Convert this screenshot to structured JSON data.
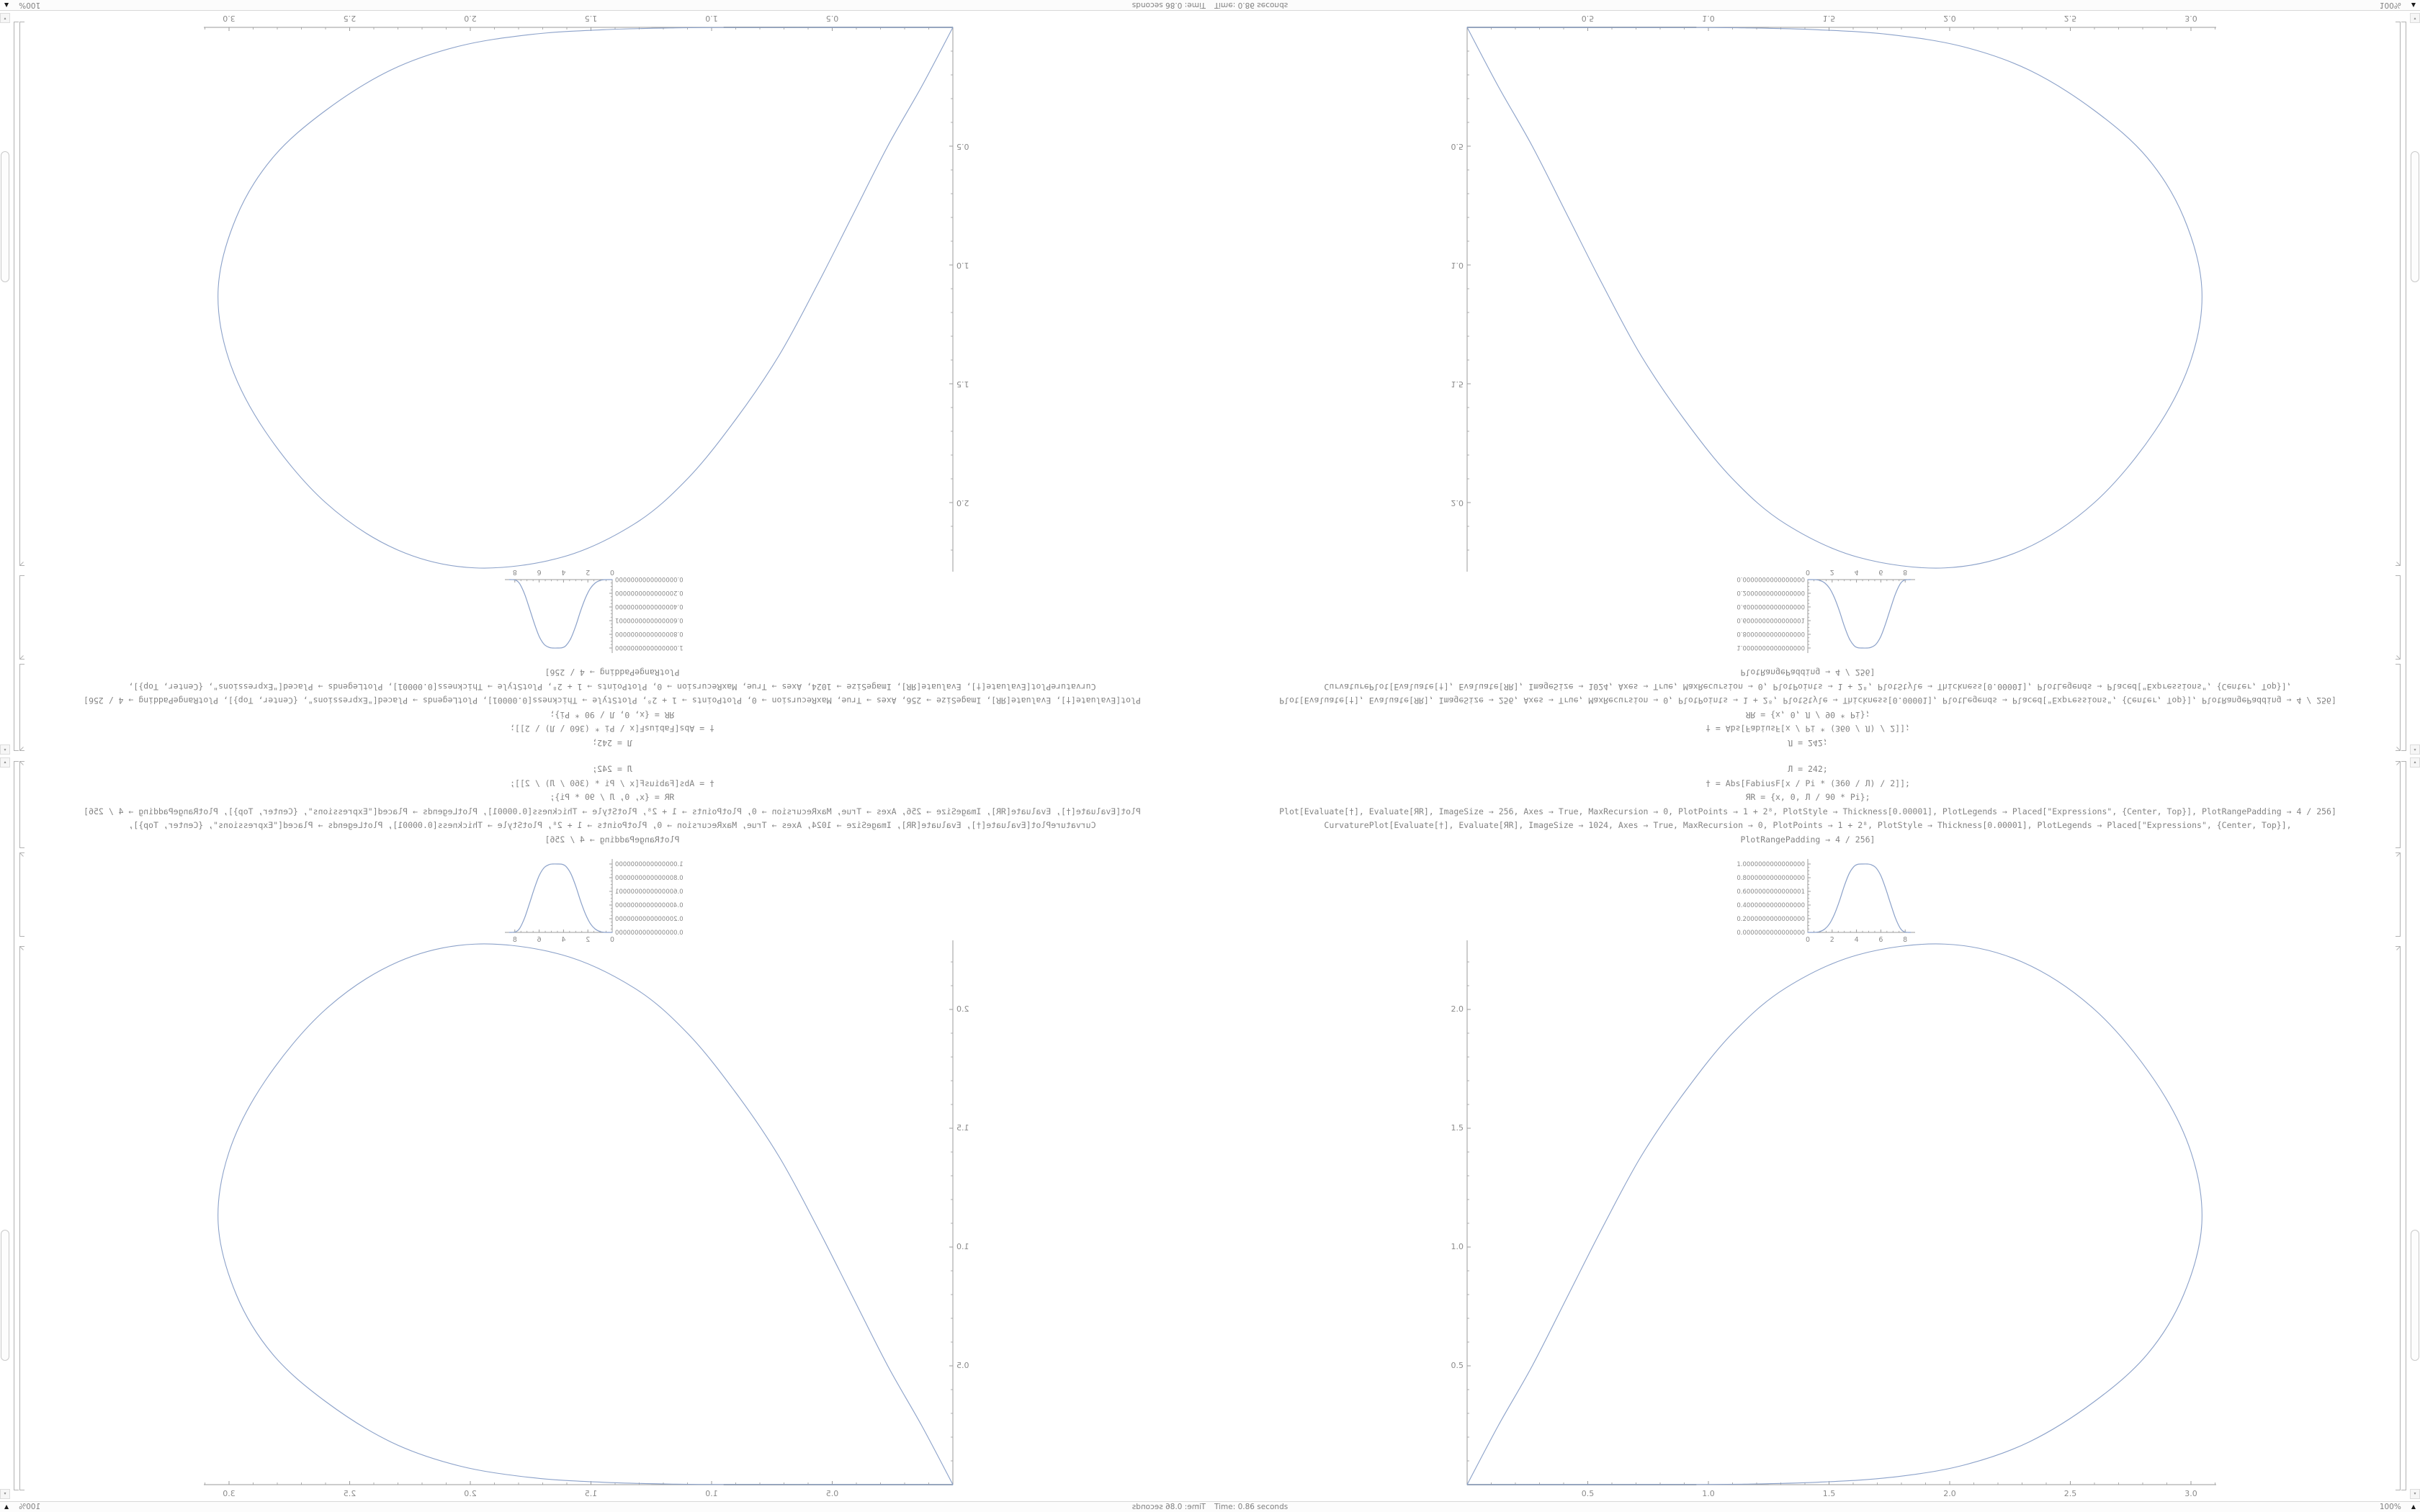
{
  "notebook": {
    "code_cell": {
      "lines": [
        "Л = 242;",
        "† = Abs[FabiusF[x / Pi * (360 / Л) / 2]];",
        "ЯR = {x, 0, Л / 90 * Pi};",
        "Plot[Evaluate[†], Evaluate[ЯR], ImageSize → 256, Axes → True, MaxRecursion → 0, PlotPoints → 1 + 2⁸, PlotStyle → Thickness[0.00001], PlotLegends → Placed[\"Expressions\", {Center, Top}], PlotRangePadding → 4 / 256]",
        "CurvaturePlot[Evaluate[†], Evaluate[ЯR], ImageSize → 1024, Axes → True, MaxRecursion → 0, PlotPoints → 1 + 2⁸, PlotStyle → Thickness[0.00001], PlotLegends → Placed[\"Expressions\", {Center, Top}],",
        "PlotRangePadding → 4 / 256]"
      ]
    },
    "status_bar": {
      "time_label": "Time: 0.86 seconds",
      "zoom_label": "100%",
      "zoom_icon": "▲"
    },
    "scrollbar": {
      "up_icon": "▴",
      "down_icon": "▾"
    }
  },
  "colors": {
    "curve": "#8ba1c9",
    "axis": "#9b9b9b",
    "tick_label": "#8a8a8a",
    "code_text": "#838383",
    "bracket": "#b2b2b2",
    "status_text": "#7f7f7f",
    "zoom_icon_color": "#1a1a1a",
    "axis_overlap_dark": "#8e949b",
    "axis_overlap_light": "#c3c7cb"
  },
  "chart_data": {
    "small_plot": {
      "type": "line",
      "title": "",
      "xlabel": "",
      "ylabel": "",
      "xlim": [
        0,
        8.45
      ],
      "ylim": [
        0,
        1.0
      ],
      "x_ticks": [
        0,
        2,
        4,
        6,
        8
      ],
      "y_tick_values": [
        1.0,
        0.8,
        0.6,
        0.4,
        0.2,
        0.0
      ],
      "y_tick_labels": [
        "1.0000000000000000",
        "0.8000000000000000",
        "0.6000000000000001",
        "0.4000000000000000",
        "0.2000000000000000",
        "0.0000000000000000"
      ],
      "points": [
        [
          0,
          0
        ],
        [
          0.6,
          0.001
        ],
        [
          1.0,
          0.012
        ],
        [
          1.4,
          0.05
        ],
        [
          1.8,
          0.13
        ],
        [
          2.2,
          0.27
        ],
        [
          2.6,
          0.46
        ],
        [
          3.0,
          0.68
        ],
        [
          3.4,
          0.86
        ],
        [
          3.8,
          0.965
        ],
        [
          4.1,
          0.995
        ],
        [
          4.5,
          1.0
        ],
        [
          4.9,
          1.0
        ],
        [
          5.2,
          0.99
        ],
        [
          5.6,
          0.945
        ],
        [
          6.0,
          0.83
        ],
        [
          6.4,
          0.64
        ],
        [
          6.8,
          0.42
        ],
        [
          7.2,
          0.21
        ],
        [
          7.6,
          0.06
        ],
        [
          7.9,
          0.01
        ],
        [
          8.2,
          0.001
        ],
        [
          8.45,
          0
        ]
      ]
    },
    "large_plot": {
      "type": "line",
      "title": "",
      "xlabel": "",
      "ylabel": "",
      "xlim": [
        0,
        3.1
      ],
      "ylim": [
        0,
        2.29
      ],
      "x_ticks": [
        0.5,
        1.0,
        1.5,
        2.0,
        2.5,
        3.0
      ],
      "y_ticks": [
        0.5,
        1.0,
        1.5,
        2.0
      ],
      "points": [
        [
          0,
          0
        ],
        [
          0.13,
          0.25
        ],
        [
          0.27,
          0.5
        ],
        [
          0.42,
          0.8
        ],
        [
          0.56,
          1.08
        ],
        [
          0.72,
          1.38
        ],
        [
          0.9,
          1.65
        ],
        [
          1.1,
          1.9
        ],
        [
          1.32,
          2.09
        ],
        [
          1.62,
          2.23
        ],
        [
          1.98,
          2.275
        ],
        [
          2.3,
          2.2
        ],
        [
          2.6,
          2.0
        ],
        [
          2.85,
          1.7
        ],
        [
          3.0,
          1.4
        ],
        [
          3.045,
          1.1
        ],
        [
          2.97,
          0.8
        ],
        [
          2.82,
          0.55
        ],
        [
          2.6,
          0.35
        ],
        [
          2.33,
          0.18
        ],
        [
          2.05,
          0.08
        ],
        [
          1.75,
          0.03
        ],
        [
          1.45,
          0.01
        ],
        [
          1.15,
          0.002
        ],
        [
          0.95,
          0.0008
        ],
        [
          0.5,
          0.0003
        ],
        [
          0,
          0
        ]
      ],
      "straight_segment_end_x": 0.95,
      "faint_segment_end_x": 1.25
    }
  }
}
